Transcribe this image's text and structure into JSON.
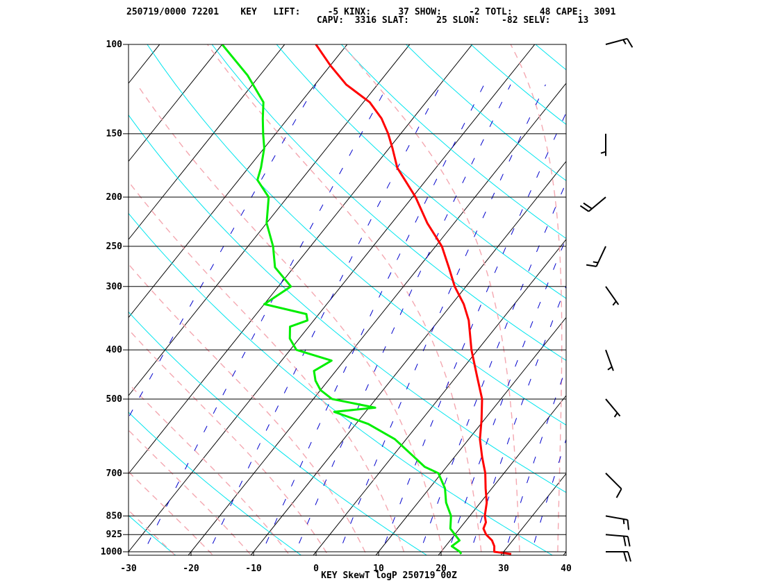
{
  "header": {
    "line1": "250719/0000 72201    KEY   LIFT:     -5 KINX:     37 SHOW:     -2 TOTL:     48 CAPE:  3091",
    "line2": "                                   CAPV:  3316 SLAT:     25 SLON:    -82 SELV:     13"
  },
  "footer_title": "KEY SkewT logP 250719 00Z",
  "chart_data": {
    "type": "skewt",
    "station": "72201",
    "station_id": "KEY",
    "date": "250719/0000",
    "indices": {
      "LIFT": -5,
      "KINX": 37,
      "SHOW": -2,
      "TOTL": 48,
      "CAPE": 3091,
      "CAPV": 3316,
      "SLAT": 25,
      "SLON": -82,
      "SELV": 13
    },
    "pressure_levels": [
      100,
      150,
      200,
      250,
      300,
      400,
      500,
      700,
      850,
      925,
      1000
    ],
    "pressure_labels": [
      "100",
      "150",
      "200",
      "250",
      "300",
      "400",
      "500",
      "700",
      "850",
      "925",
      "1000"
    ],
    "temp_ticks": [
      -30,
      -20,
      -10,
      0,
      10,
      20,
      30,
      40
    ],
    "temp_labels": [
      "-30",
      "-20",
      "-10",
      "0",
      "10",
      "20",
      "30",
      "40"
    ],
    "xlim": [
      -30,
      40
    ],
    "ylim": [
      1000,
      100
    ],
    "colors": {
      "temperature": "#ff0000",
      "dewpoint": "#00ee00",
      "isotherm": "#000000",
      "dry_adiabat": "#00e5ee",
      "moist_adiabat": "#f4a7b0",
      "mixing_ratio": "#0000cc"
    },
    "temperature": [
      [
        1010,
        31.5
      ],
      [
        1000,
        28.5
      ],
      [
        975,
        27.8
      ],
      [
        950,
        26.7
      ],
      [
        925,
        25.0
      ],
      [
        900,
        23.8
      ],
      [
        875,
        23.4
      ],
      [
        850,
        22.4
      ],
      [
        800,
        21.0
      ],
      [
        750,
        19.0
      ],
      [
        700,
        17.0
      ],
      [
        650,
        14.4
      ],
      [
        600,
        11.8
      ],
      [
        550,
        9.6
      ],
      [
        500,
        7.0
      ],
      [
        450,
        3.2
      ],
      [
        400,
        -1.0
      ],
      [
        350,
        -5.2
      ],
      [
        325,
        -8.1
      ],
      [
        300,
        -11.8
      ],
      [
        275,
        -15.2
      ],
      [
        250,
        -19.0
      ],
      [
        225,
        -24.3
      ],
      [
        200,
        -29.5
      ],
      [
        175,
        -36.2
      ],
      [
        160,
        -39.5
      ],
      [
        150,
        -42.0
      ],
      [
        140,
        -45.0
      ],
      [
        130,
        -49.0
      ],
      [
        120,
        -55.0
      ],
      [
        110,
        -60.0
      ],
      [
        100,
        -65.0
      ]
    ],
    "dewpoint": [
      [
        1010,
        23.5
      ],
      [
        1000,
        23.0
      ],
      [
        975,
        21.0
      ],
      [
        950,
        21.5
      ],
      [
        925,
        20.0
      ],
      [
        900,
        18.5
      ],
      [
        850,
        17.0
      ],
      [
        800,
        14.5
      ],
      [
        750,
        12.5
      ],
      [
        700,
        9.5
      ],
      [
        680,
        6.5
      ],
      [
        650,
        3.5
      ],
      [
        600,
        -1.8
      ],
      [
        560,
        -8.0
      ],
      [
        530,
        -15.0
      ],
      [
        520,
        -9.0
      ],
      [
        500,
        -17.0
      ],
      [
        480,
        -20.0
      ],
      [
        460,
        -22.0
      ],
      [
        440,
        -23.5
      ],
      [
        420,
        -22.0
      ],
      [
        400,
        -29.0
      ],
      [
        380,
        -31.5
      ],
      [
        360,
        -33.0
      ],
      [
        350,
        -31.0
      ],
      [
        340,
        -32.0
      ],
      [
        325,
        -40.0
      ],
      [
        300,
        -38.0
      ],
      [
        275,
        -43.0
      ],
      [
        250,
        -46.0
      ],
      [
        225,
        -50.0
      ],
      [
        200,
        -53.0
      ],
      [
        185,
        -57.0
      ],
      [
        175,
        -58.0
      ],
      [
        160,
        -60.0
      ],
      [
        150,
        -62.0
      ],
      [
        140,
        -64.0
      ],
      [
        130,
        -66.0
      ],
      [
        115,
        -72.0
      ],
      [
        100,
        -80.0
      ]
    ],
    "wind_barbs": [
      {
        "p": 1000,
        "dir": 90,
        "spd": 20
      },
      {
        "p": 925,
        "dir": 95,
        "spd": 20
      },
      {
        "p": 850,
        "dir": 100,
        "spd": 15
      },
      {
        "p": 700,
        "dir": 135,
        "spd": 10
      },
      {
        "p": 500,
        "dir": 140,
        "spd": 5
      },
      {
        "p": 400,
        "dir": 160,
        "spd": 5
      },
      {
        "p": 300,
        "dir": 145,
        "spd": 5
      },
      {
        "p": 250,
        "dir": 205,
        "spd": 15
      },
      {
        "p": 200,
        "dir": 230,
        "spd": 20
      },
      {
        "p": 150,
        "dir": 180,
        "spd": 5
      },
      {
        "p": 100,
        "dir": 75,
        "spd": 15
      }
    ]
  }
}
